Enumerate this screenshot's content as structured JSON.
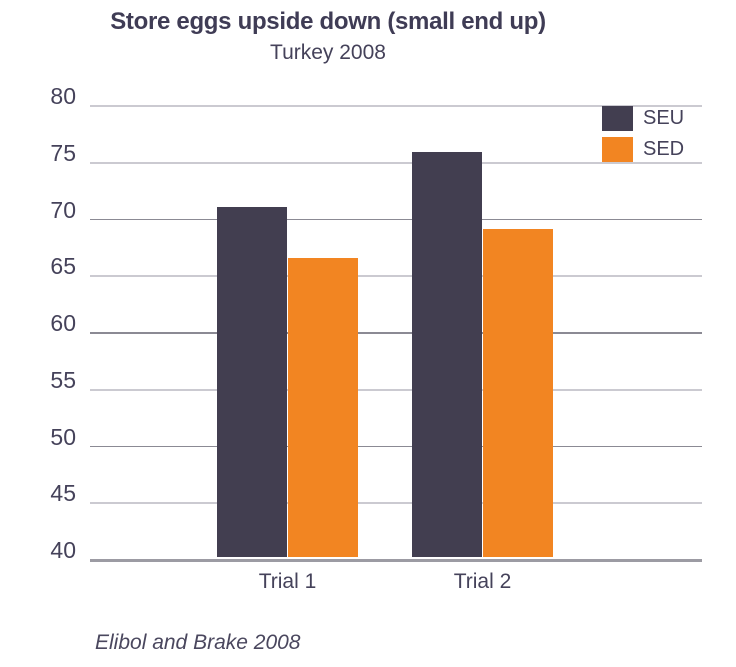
{
  "chart_data": {
    "type": "bar",
    "title": "Store eggs upside down (small end up)",
    "subtitle": "Turkey 2008",
    "source": "Elibol and Brake 2008",
    "categories": [
      "Trial 1",
      "Trial 2"
    ],
    "series": [
      {
        "name": "SEU",
        "color": "#423E50",
        "values": [
          71.0,
          75.9
        ]
      },
      {
        "name": "SED",
        "color": "#F28522",
        "values": [
          66.5,
          69.1
        ]
      }
    ],
    "xlabel": "",
    "ylabel": "",
    "ylim": [
      40,
      80
    ],
    "yticks": [
      40,
      45,
      50,
      55,
      60,
      65,
      70,
      75,
      80
    ],
    "grid": true,
    "legend_position": "top-right"
  },
  "colors": {
    "text": "#45425A",
    "title_text": "#3F3C55",
    "grid_light": "#CBCAD1",
    "grid_major": "#8B8A94",
    "axis_line": "#9C9BA3",
    "background": "#FFFFFF"
  }
}
